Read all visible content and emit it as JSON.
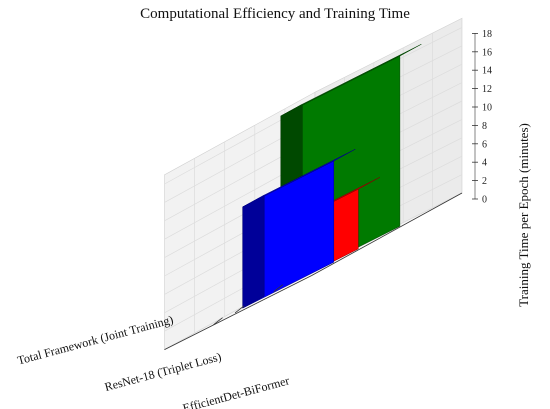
{
  "chart_data": {
    "type": "bar",
    "title": "Computational Efficiency and Training Time",
    "categories": [
      "Total Framework (Joint Training)",
      "ResNet-18 (Triplet Loss)",
      "EfficientDet-BiFormer"
    ],
    "values": [
      18.5,
      6.5,
      11.0
    ],
    "colors": [
      "#007a00",
      "#ff0000",
      "#0000ff"
    ],
    "xlabel": "",
    "ylabel": "Training Time per Epoch (minutes)",
    "zlim": [
      0,
      19
    ],
    "zticks": [
      0,
      2,
      4,
      6,
      8,
      10,
      12,
      14,
      16,
      18
    ],
    "grid": true,
    "projection": "3d"
  }
}
